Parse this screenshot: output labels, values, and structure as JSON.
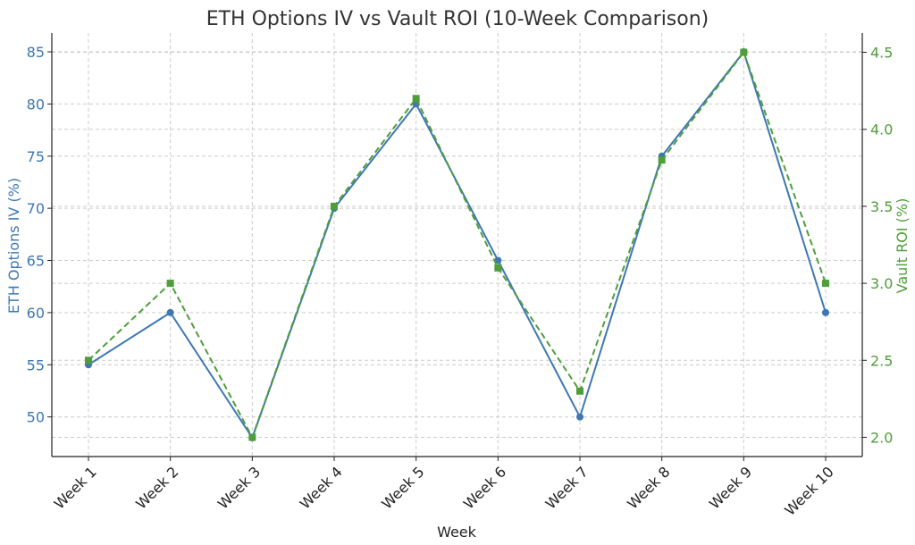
{
  "chart_data": {
    "type": "line",
    "title": "ETH Options IV vs Vault ROI (10-Week Comparison)",
    "xlabel": "Week",
    "ylabel_left": "ETH Options IV (%)",
    "ylabel_right": "Vault ROI (%)",
    "categories": [
      "Week 1",
      "Week 2",
      "Week 3",
      "Week 4",
      "Week 5",
      "Week 6",
      "Week 7",
      "Week 8",
      "Week 9",
      "Week 10"
    ],
    "series": [
      {
        "name": "ETH Options IV (%)",
        "axis": "left",
        "values": [
          55,
          60,
          48,
          70,
          80,
          65,
          50,
          75,
          85,
          60
        ],
        "color": "#3d78b4",
        "line_style": "solid",
        "marker": "circle"
      },
      {
        "name": "Vault ROI (%)",
        "axis": "right",
        "values": [
          2.5,
          3.0,
          2.0,
          3.5,
          4.2,
          3.1,
          2.3,
          3.8,
          4.5,
          3.0
        ],
        "color": "#4f9e3a",
        "line_style": "dashed",
        "marker": "square"
      }
    ],
    "left_axis": {
      "ticks": [
        50,
        55,
        60,
        65,
        70,
        75,
        80,
        85
      ],
      "ylim": [
        46.2,
        86.8
      ],
      "color": "#3d78b4"
    },
    "right_axis": {
      "ticks": [
        "2.0",
        "2.5",
        "3.0",
        "3.5",
        "4.0",
        "4.5"
      ],
      "ylim": [
        1.875,
        4.625
      ],
      "color": "#4f9e3a"
    },
    "grid": true,
    "legend": "none"
  }
}
